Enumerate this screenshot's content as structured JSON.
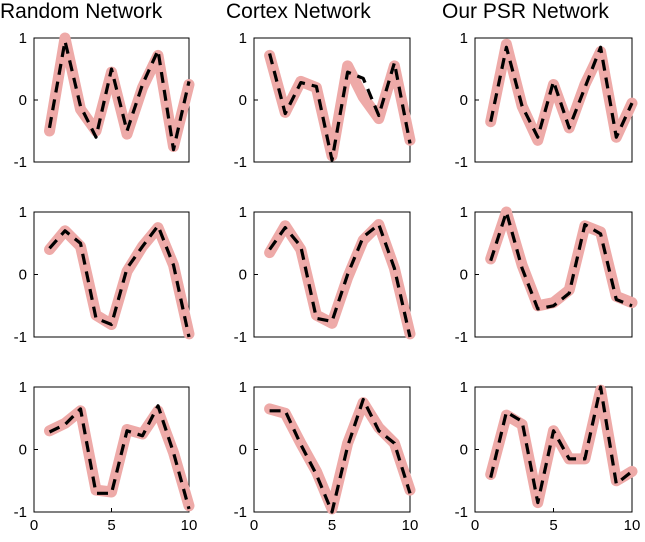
{
  "colors": {
    "target": "#eeaaa8",
    "prediction": "#000000",
    "background": "#ffffff"
  },
  "column_titles": [
    "Random Network",
    "Cortex Network",
    "Our PSR Network"
  ],
  "chart_data": [
    {
      "type": "line",
      "title": "Random Network",
      "ylim": [
        -1,
        1
      ],
      "yticks": [
        "1",
        "0",
        "-1"
      ],
      "xlim": [
        0,
        10
      ],
      "xticks": [],
      "x": [
        1,
        2,
        3,
        4,
        5,
        6,
        7,
        8,
        9,
        10
      ],
      "series": [
        {
          "values": [
            -0.5,
            1.0,
            -0.15,
            -0.5,
            0.45,
            -0.55,
            0.2,
            0.72,
            -0.75,
            0.25
          ]
        },
        {
          "values": [
            -0.45,
            0.95,
            -0.1,
            -0.6,
            0.5,
            -0.5,
            0.25,
            0.8,
            -0.8,
            0.3
          ]
        }
      ]
    },
    {
      "type": "line",
      "title": "Cortex Network",
      "ylim": [
        -1,
        1
      ],
      "yticks": [
        "1",
        "0",
        "-1"
      ],
      "xlim": [
        0,
        10
      ],
      "xticks": [],
      "x": [
        1,
        2,
        3,
        4,
        5,
        6,
        7,
        8,
        9,
        10
      ],
      "series": [
        {
          "values": [
            0.72,
            -0.2,
            0.3,
            0.2,
            -0.9,
            0.55,
            0.05,
            -0.3,
            0.55,
            -0.65
          ]
        },
        {
          "values": [
            0.75,
            -0.22,
            0.28,
            0.22,
            -0.97,
            0.45,
            0.35,
            -0.25,
            0.6,
            -0.7
          ]
        }
      ]
    },
    {
      "type": "line",
      "title": "Our PSR Network",
      "ylim": [
        -1,
        1
      ],
      "yticks": [
        "1",
        "0",
        "-1"
      ],
      "xlim": [
        0,
        10
      ],
      "xticks": [],
      "x": [
        1,
        2,
        3,
        4,
        5,
        6,
        7,
        8,
        9,
        10
      ],
      "series": [
        {
          "values": [
            -0.35,
            0.9,
            -0.1,
            -0.65,
            0.25,
            -0.45,
            0.25,
            0.78,
            -0.6,
            -0.05
          ]
        },
        {
          "values": [
            -0.35,
            0.85,
            -0.1,
            -0.6,
            0.3,
            -0.45,
            0.2,
            0.85,
            -0.6,
            -0.05
          ]
        }
      ]
    },
    {
      "type": "line",
      "ylim": [
        -1,
        1
      ],
      "yticks": [
        "1",
        "0",
        "-1"
      ],
      "xlim": [
        0,
        10
      ],
      "xticks": [],
      "x": [
        1,
        2,
        3,
        4,
        5,
        6,
        7,
        8,
        9,
        10
      ],
      "series": [
        {
          "values": [
            0.4,
            0.7,
            0.45,
            -0.65,
            -0.8,
            0.05,
            0.45,
            0.75,
            0.15,
            -0.95
          ]
        },
        {
          "values": [
            0.42,
            0.7,
            0.5,
            -0.7,
            -0.8,
            0.1,
            0.45,
            0.78,
            0.15,
            -1.0
          ]
        }
      ]
    },
    {
      "type": "line",
      "ylim": [
        -1,
        1
      ],
      "yticks": [
        "1",
        "0",
        "-1"
      ],
      "xlim": [
        0,
        10
      ],
      "xticks": [],
      "x": [
        1,
        2,
        3,
        4,
        5,
        6,
        7,
        8,
        9,
        10
      ],
      "series": [
        {
          "values": [
            0.35,
            0.78,
            0.4,
            -0.65,
            -0.78,
            -0.05,
            0.55,
            0.8,
            0.1,
            -0.95
          ]
        },
        {
          "values": [
            0.4,
            0.75,
            0.45,
            -0.7,
            -0.75,
            0.0,
            0.6,
            0.8,
            0.1,
            -1.0
          ]
        }
      ]
    },
    {
      "type": "line",
      "ylim": [
        -1,
        1
      ],
      "yticks": [
        "1",
        "0",
        "-1"
      ],
      "xlim": [
        0,
        10
      ],
      "xticks": [],
      "x": [
        1,
        2,
        3,
        4,
        5,
        6,
        7,
        8,
        9,
        10
      ],
      "series": [
        {
          "values": [
            0.25,
            1.0,
            0.15,
            -0.5,
            -0.45,
            -0.25,
            0.78,
            0.68,
            -0.35,
            -0.45
          ]
        },
        {
          "values": [
            0.22,
            1.0,
            0.1,
            -0.55,
            -0.5,
            -0.3,
            0.8,
            0.65,
            -0.4,
            -0.5
          ]
        }
      ]
    },
    {
      "type": "line",
      "ylim": [
        -1,
        1
      ],
      "yticks": [
        "1",
        "0",
        "-1"
      ],
      "xlim": [
        0,
        10
      ],
      "xticks": [
        "0",
        "5",
        "10"
      ],
      "x": [
        1,
        2,
        3,
        4,
        5,
        6,
        7,
        8,
        9,
        10
      ],
      "series": [
        {
          "values": [
            0.3,
            0.42,
            0.62,
            -0.65,
            -0.68,
            0.32,
            0.25,
            0.62,
            -0.05,
            -0.9
          ]
        },
        {
          "values": [
            0.28,
            0.4,
            0.65,
            -0.7,
            -0.7,
            0.3,
            0.22,
            0.7,
            -0.05,
            -0.95
          ]
        }
      ]
    },
    {
      "type": "line",
      "ylim": [
        -1,
        1
      ],
      "yticks": [
        "1",
        "0",
        "-1"
      ],
      "xlim": [
        0,
        10
      ],
      "xticks": [
        "0",
        "5",
        "10"
      ],
      "x": [
        1,
        2,
        3,
        4,
        5,
        6,
        7,
        8,
        9,
        10
      ],
      "series": [
        {
          "values": [
            0.65,
            0.58,
            0.1,
            -0.35,
            -0.95,
            0.1,
            0.75,
            0.35,
            0.1,
            -0.65
          ]
        },
        {
          "values": [
            0.62,
            0.62,
            0.08,
            -0.4,
            -1.0,
            0.05,
            0.8,
            0.3,
            0.1,
            -0.7
          ]
        }
      ]
    },
    {
      "type": "line",
      "ylim": [
        -1,
        1
      ],
      "yticks": [
        "1",
        "0",
        "-1"
      ],
      "xlim": [
        0,
        10
      ],
      "xticks": [
        "0",
        "5",
        "10"
      ],
      "x": [
        1,
        2,
        3,
        4,
        5,
        6,
        7,
        8,
        9,
        10
      ],
      "series": [
        {
          "values": [
            -0.4,
            0.55,
            0.4,
            -0.85,
            0.3,
            -0.15,
            -0.15,
            0.95,
            -0.5,
            -0.35
          ]
        },
        {
          "values": [
            -0.45,
            0.6,
            0.45,
            -0.85,
            0.3,
            -0.15,
            -0.15,
            1.0,
            -0.55,
            -0.35
          ]
        }
      ]
    }
  ]
}
